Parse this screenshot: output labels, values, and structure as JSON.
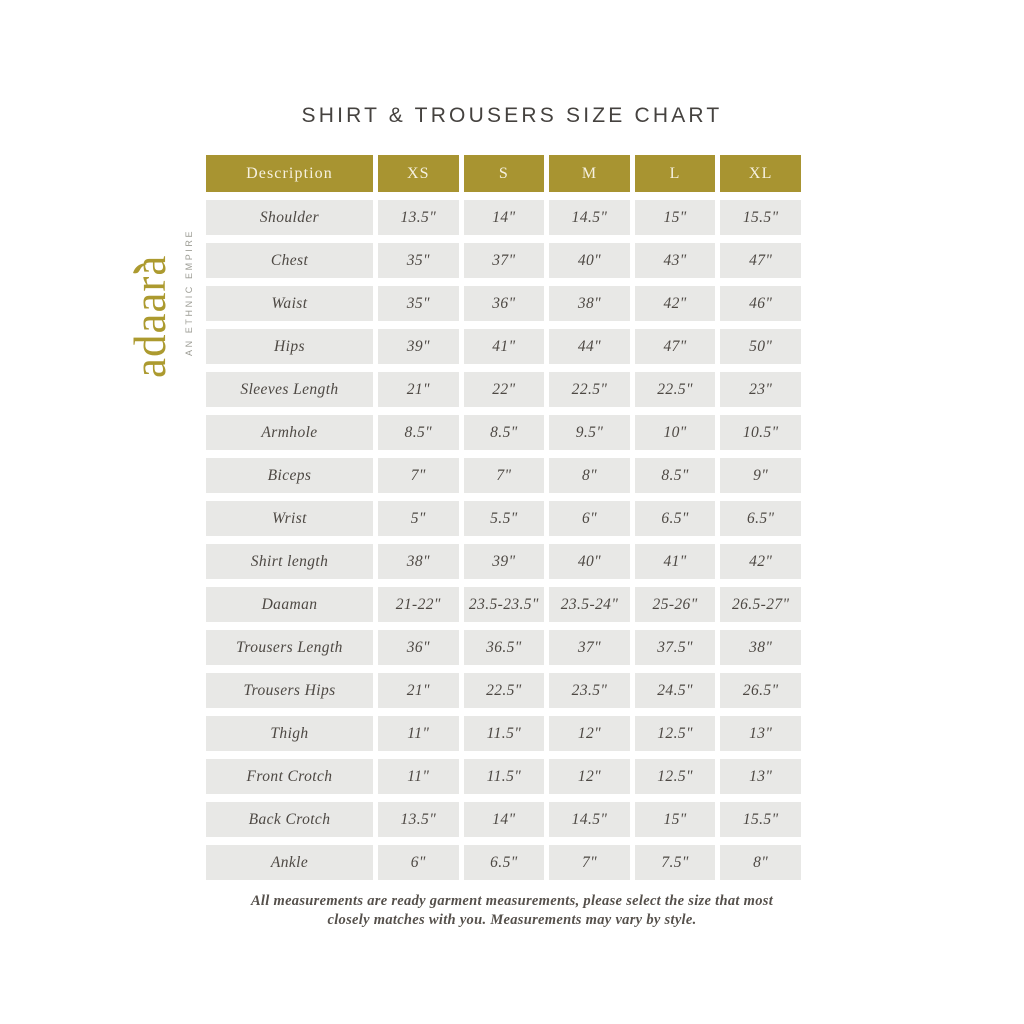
{
  "title": "SHIRT & TROUSERS SIZE CHART",
  "logo": {
    "word": "adaara",
    "tagline": "AN ETHNIC EMPIRE"
  },
  "chart_data": {
    "type": "table",
    "title": "SHIRT & TROUSERS SIZE CHART",
    "columns": [
      "Description",
      "XS",
      "S",
      "M",
      "L",
      "XL"
    ],
    "rows": [
      [
        "Shoulder",
        "13.5\"",
        "14\"",
        "14.5\"",
        "15\"",
        "15.5\""
      ],
      [
        "Chest",
        "35\"",
        "37\"",
        "40\"",
        "43\"",
        "47\""
      ],
      [
        "Waist",
        "35\"",
        "36\"",
        "38\"",
        "42\"",
        "46\""
      ],
      [
        "Hips",
        "39\"",
        "41\"",
        "44\"",
        "47\"",
        "50\""
      ],
      [
        "Sleeves Length",
        "21\"",
        "22\"",
        "22.5\"",
        "22.5\"",
        "23\""
      ],
      [
        "Armhole",
        "8.5\"",
        "8.5\"",
        "9.5\"",
        "10\"",
        "10.5\""
      ],
      [
        "Biceps",
        "7\"",
        "7\"",
        "8\"",
        "8.5\"",
        "9\""
      ],
      [
        "Wrist",
        "5\"",
        "5.5\"",
        "6\"",
        "6.5\"",
        "6.5\""
      ],
      [
        "Shirt length",
        "38\"",
        "39\"",
        "40\"",
        "41\"",
        "42\""
      ],
      [
        "Daaman",
        "21-22\"",
        "23.5-23.5\"",
        "23.5-24\"",
        "25-26\"",
        "26.5-27\""
      ],
      [
        "Trousers Length",
        "36\"",
        "36.5\"",
        "37\"",
        "37.5\"",
        "38\""
      ],
      [
        "Trousers Hips",
        "21\"",
        "22.5\"",
        "23.5\"",
        "24.5\"",
        "26.5\""
      ],
      [
        "Thigh",
        "11\"",
        "11.5\"",
        "12\"",
        "12.5\"",
        "13\""
      ],
      [
        "Front Crotch",
        "11\"",
        "11.5\"",
        "12\"",
        "12.5\"",
        "13\""
      ],
      [
        "Back Crotch",
        "13.5\"",
        "14\"",
        "14.5\"",
        "15\"",
        "15.5\""
      ],
      [
        "Ankle",
        "6\"",
        "6.5\"",
        "7\"",
        "7.5\"",
        "8\""
      ]
    ]
  },
  "footer": {
    "line1": "All measurements are ready garment measurements, please select the size that most",
    "line2": "closely matches with you. Measurements may vary by style."
  },
  "colors": {
    "gold": "#a89431",
    "logo_gold": "#ac9a2f",
    "header_text": "#f6f1e0",
    "cell_bg": "#e8e8e6",
    "body_text": "#4d4843",
    "title_text": "#45423f",
    "tagline_text": "#9c9c94",
    "footer_text": "#55504b"
  }
}
